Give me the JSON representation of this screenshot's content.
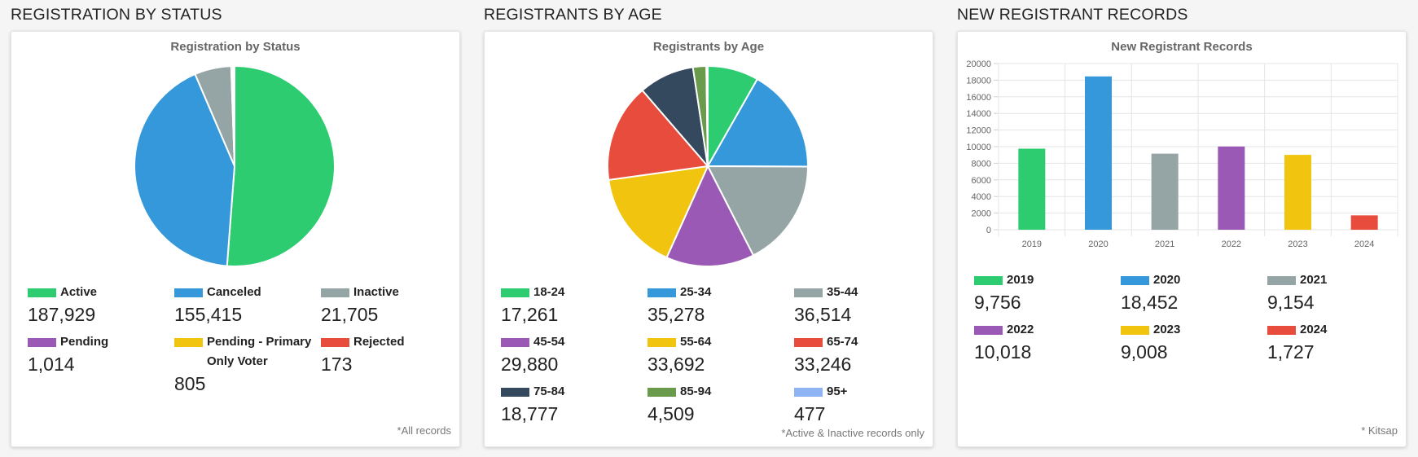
{
  "panels": [
    {
      "section_title": "REGISTRATION BY STATUS",
      "footnote": "*All records",
      "chart_data": {
        "type": "pie",
        "title": "Registration by Status",
        "categories": [
          "Active",
          "Canceled",
          "Inactive",
          "Pending",
          "Pending - Primary Only Voter",
          "Rejected"
        ],
        "values": [
          187929,
          155415,
          21705,
          1014,
          805,
          173
        ],
        "value_labels": [
          "187,929",
          "155,415",
          "21,705",
          "1,014",
          "805",
          "173"
        ],
        "colors": [
          "#2ecc71",
          "#3498db",
          "#95a5a6",
          "#9b59b6",
          "#f1c40f",
          "#e74c3c"
        ]
      }
    },
    {
      "section_title": "REGISTRANTS BY AGE",
      "footnote": "*Active & Inactive records only",
      "chart_data": {
        "type": "pie",
        "title": "Registrants by Age",
        "categories": [
          "18-24",
          "25-34",
          "35-44",
          "45-54",
          "55-64",
          "65-74",
          "75-84",
          "85-94",
          "95+"
        ],
        "values": [
          17261,
          35278,
          36514,
          29880,
          33692,
          33246,
          18777,
          4509,
          477
        ],
        "value_labels": [
          "17,261",
          "35,278",
          "36,514",
          "29,880",
          "33,692",
          "33,246",
          "18,777",
          "4,509",
          "477"
        ],
        "colors": [
          "#2ecc71",
          "#3498db",
          "#95a5a6",
          "#9b59b6",
          "#f1c40f",
          "#e74c3c",
          "#34495e",
          "#6a9a4c",
          "#8fb4f4"
        ]
      }
    },
    {
      "section_title": "NEW REGISTRANT RECORDS",
      "footnote": "* Kitsap",
      "chart_data": {
        "type": "bar",
        "title": "New Registrant Records",
        "categories": [
          "2019",
          "2020",
          "2021",
          "2022",
          "2023",
          "2024"
        ],
        "values": [
          9756,
          18452,
          9154,
          10018,
          9008,
          1727
        ],
        "value_labels": [
          "9,756",
          "18,452",
          "9,154",
          "10,018",
          "9,008",
          "1,727"
        ],
        "colors": [
          "#2ecc71",
          "#3498db",
          "#95a5a6",
          "#9b59b6",
          "#f1c40f",
          "#e74c3c"
        ],
        "ylim": [
          0,
          20000
        ],
        "yticks": [
          "0",
          "2000",
          "4000",
          "6000",
          "8000",
          "10000",
          "12000",
          "14000",
          "16000",
          "18000",
          "20000"
        ],
        "grid": true
      }
    }
  ]
}
